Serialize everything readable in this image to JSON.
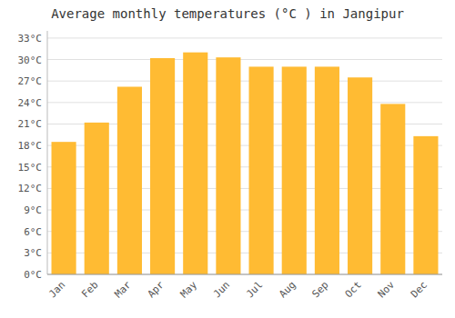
{
  "chart_data": {
    "type": "bar",
    "title": "Average monthly temperatures (°C ) in Jangipur",
    "categories": [
      "Jan",
      "Feb",
      "Mar",
      "Apr",
      "May",
      "Jun",
      "Jul",
      "Aug",
      "Sep",
      "Oct",
      "Nov",
      "Dec"
    ],
    "values": [
      18.5,
      21.2,
      26.2,
      30.2,
      31.0,
      30.3,
      29.0,
      29.0,
      29.0,
      27.5,
      23.8,
      19.3
    ],
    "color": "#FFBB33",
    "ylim": [
      0,
      34
    ],
    "yticks": [
      {
        "value": 0,
        "label": "0°C"
      },
      {
        "value": 3,
        "label": "3°C"
      },
      {
        "value": 6,
        "label": "6°C"
      },
      {
        "value": 9,
        "label": "9°C"
      },
      {
        "value": 12,
        "label": "12°C"
      },
      {
        "value": 15,
        "label": "15°C"
      },
      {
        "value": 18,
        "label": "18°C"
      },
      {
        "value": 21,
        "label": "21°C"
      },
      {
        "value": 24,
        "label": "24°C"
      },
      {
        "value": 27,
        "label": "27°C"
      },
      {
        "value": 30,
        "label": "30°C"
      },
      {
        "value": 33,
        "label": "33°C"
      }
    ],
    "grid": true
  }
}
